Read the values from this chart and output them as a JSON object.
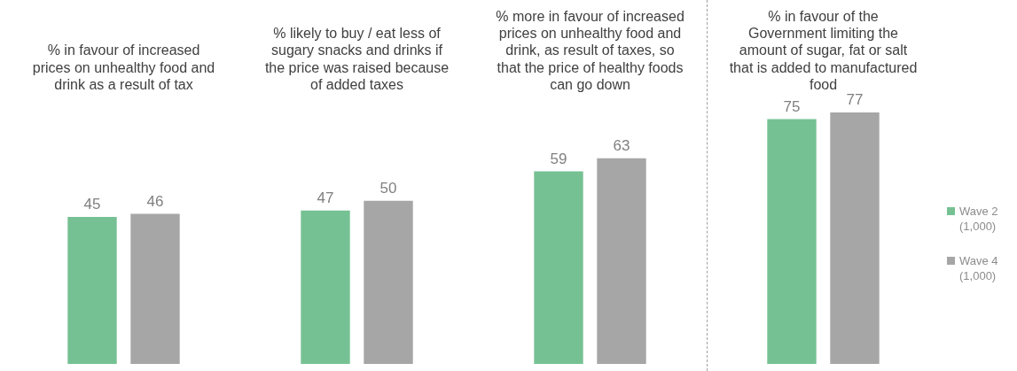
{
  "chart_data": {
    "type": "bar",
    "categories": [
      "% in favour of increased prices on unhealthy food and drink as a result of tax",
      "% likely to buy / eat less of sugary snacks and drinks if the price was raised because of added taxes",
      "% more in favour of increased prices on unhealthy food and drink, as result of taxes, so that the price of healthy foods can go down",
      "% in favour of the Government limiting the amount of sugar, fat or salt that is added to manufactured food"
    ],
    "series": [
      {
        "name": "Wave 2 (1,000)",
        "color": "#76c193",
        "values": [
          45,
          47,
          59,
          75
        ]
      },
      {
        "name": "Wave 4 (1,000)",
        "color": "#a6a6a6",
        "values": [
          46,
          50,
          63,
          77
        ]
      }
    ],
    "data_labels": true,
    "legend": "right",
    "grid": false
  }
}
